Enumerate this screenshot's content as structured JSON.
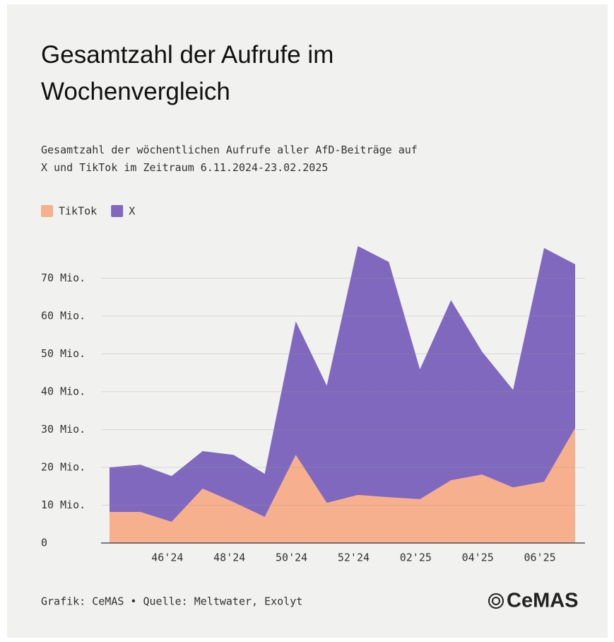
{
  "chart_data": {
    "type": "stacked_area",
    "title": "Gesamtzahl der Aufrufe im Wochenvergleich",
    "subtitle": "Gesamtzahl der wöchentlichen Aufrufe aller AfD-Beiträge auf X und TikTok im Zeitraum 6.11.2024-23.02.2025",
    "categories": [
      null,
      null,
      "46'24",
      null,
      "48'24",
      null,
      "50'24",
      null,
      "52'24",
      null,
      "02'25",
      null,
      "04'25",
      null,
      "06'25",
      null
    ],
    "series": [
      {
        "name": "TikTok",
        "color": "#f7b08e",
        "values": [
          8.2,
          8.2,
          5.6,
          14.4,
          10.8,
          6.9,
          23.3,
          10.6,
          12.7,
          12.1,
          11.6,
          16.6,
          18.1,
          14.7,
          16.2,
          30.4
        ]
      },
      {
        "name": "X",
        "color": "#8068bf",
        "values": [
          11.8,
          12.5,
          12.1,
          9.9,
          12.5,
          11.4,
          35.3,
          31.0,
          65.8,
          62.2,
          34.3,
          47.6,
          32.5,
          25.8,
          61.8,
          43.3
        ]
      }
    ],
    "ylim": [
      0,
      80
    ],
    "yticks": [
      0,
      {
        "value": 10,
        "label": "10 Mio."
      },
      {
        "value": 20,
        "label": "20 Mio."
      },
      {
        "value": 30,
        "label": "30 Mio."
      },
      {
        "value": 40,
        "label": "40 Mio."
      },
      {
        "value": 50,
        "label": "50 Mio."
      },
      {
        "value": 60,
        "label": "60 Mio."
      },
      {
        "value": 70,
        "label": "70 Mio."
      }
    ],
    "grid": true,
    "legend": "top-left",
    "footer": "Grafik: CeMAS • Quelle: Meltwater, Exolyt",
    "logo": "CeMAS"
  }
}
